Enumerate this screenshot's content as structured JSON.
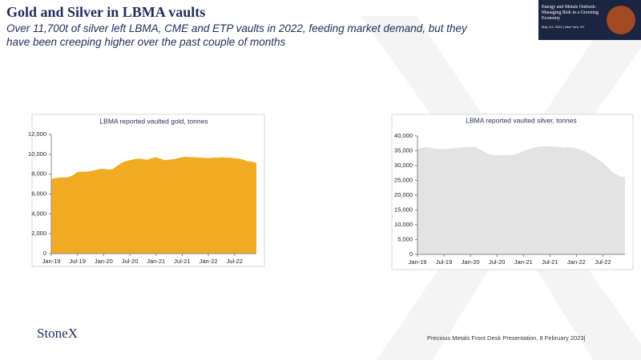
{
  "slide": {
    "title": "Gold and Silver in LBMA vaults",
    "subtitle": "Over 11,700t of silver left LBMA, CME and ETP vaults in 2022, feeding market demand, but they have been creeping higher over the past couple of months",
    "banner": {
      "title": "Energy and Metals Outlook: Managing Risk in a Greening Economy",
      "date": "May 3-5, 2023 | New York, NY"
    },
    "logo": "StoneX",
    "footer": "Precious Metals Front Desk Presentation, 8 February 2023|"
  },
  "chart_data": [
    {
      "type": "area",
      "title": "LBMA reported vaulted gold, tonnes",
      "color": "#f0ab23",
      "grid": false,
      "categories": [
        "Jan-19",
        null,
        null,
        null,
        null,
        null,
        "Jul-19",
        null,
        null,
        null,
        null,
        null,
        "Jan-20",
        null,
        null,
        null,
        null,
        null,
        "Jul-20",
        null,
        null,
        null,
        null,
        null,
        "Jan-21",
        null,
        null,
        null,
        null,
        null,
        "Jul-21",
        null,
        null,
        null,
        null,
        null,
        "Jan-22",
        null,
        null,
        null,
        null,
        null,
        "Jul-22",
        null,
        null,
        null,
        null,
        null
      ],
      "values": [
        7500,
        7600,
        7650,
        7650,
        7700,
        7900,
        8200,
        8250,
        8250,
        8300,
        8400,
        8500,
        8550,
        8450,
        8500,
        8800,
        9100,
        9300,
        9400,
        9500,
        9550,
        9500,
        9450,
        9600,
        9700,
        9550,
        9400,
        9450,
        9500,
        9600,
        9700,
        9750,
        9700,
        9700,
        9650,
        9650,
        9600,
        9650,
        9650,
        9700,
        9650,
        9650,
        9600,
        9550,
        9450,
        9300,
        9250,
        9150
      ],
      "ylim": [
        0,
        12000
      ],
      "yticks": [
        0,
        {
          "value": 2000,
          "label": "2,000"
        },
        {
          "value": 4000,
          "label": "4,000"
        },
        {
          "value": 6000,
          "label": "6,000"
        },
        {
          "value": 8000,
          "label": "8,000"
        },
        {
          "value": 10000,
          "label": "10,000"
        },
        {
          "value": 12000,
          "label": "12,000"
        }
      ]
    },
    {
      "type": "area",
      "title": "LBMA reported vaulted silver, tonnes",
      "color": "#e3e3e3",
      "grid": false,
      "categories": [
        "Jan-19",
        null,
        null,
        null,
        null,
        null,
        "Jul-19",
        null,
        null,
        null,
        null,
        null,
        "Jan-20",
        null,
        null,
        null,
        null,
        null,
        "Jul-20",
        null,
        null,
        null,
        null,
        null,
        "Jan-21",
        null,
        null,
        null,
        null,
        null,
        "Jul-21",
        null,
        null,
        null,
        null,
        null,
        "Jan-22",
        null,
        null,
        null,
        null,
        null,
        "Jul-22",
        null,
        null,
        null,
        null,
        null
      ],
      "values": [
        35500,
        36000,
        36200,
        36000,
        35800,
        35600,
        35600,
        35700,
        35800,
        36000,
        36100,
        36200,
        36300,
        36400,
        35500,
        34800,
        34000,
        33600,
        33500,
        33500,
        33600,
        33500,
        33700,
        34300,
        35000,
        35400,
        35800,
        36300,
        36500,
        36500,
        36500,
        36400,
        36300,
        36000,
        36200,
        36100,
        35800,
        35300,
        34800,
        34000,
        33000,
        32000,
        31000,
        29500,
        28000,
        27000,
        26400,
        26100
      ],
      "ylim": [
        0,
        40000
      ],
      "yticks": [
        0,
        {
          "value": 5000,
          "label": "5,000"
        },
        {
          "value": 10000,
          "label": "10,000"
        },
        {
          "value": 15000,
          "label": "15,000"
        },
        {
          "value": 20000,
          "label": "20,000"
        },
        {
          "value": 25000,
          "label": "25,000"
        },
        {
          "value": 30000,
          "label": "30,000"
        },
        {
          "value": 35000,
          "label": "35,000"
        },
        {
          "value": 40000,
          "label": "40,000"
        }
      ]
    }
  ]
}
